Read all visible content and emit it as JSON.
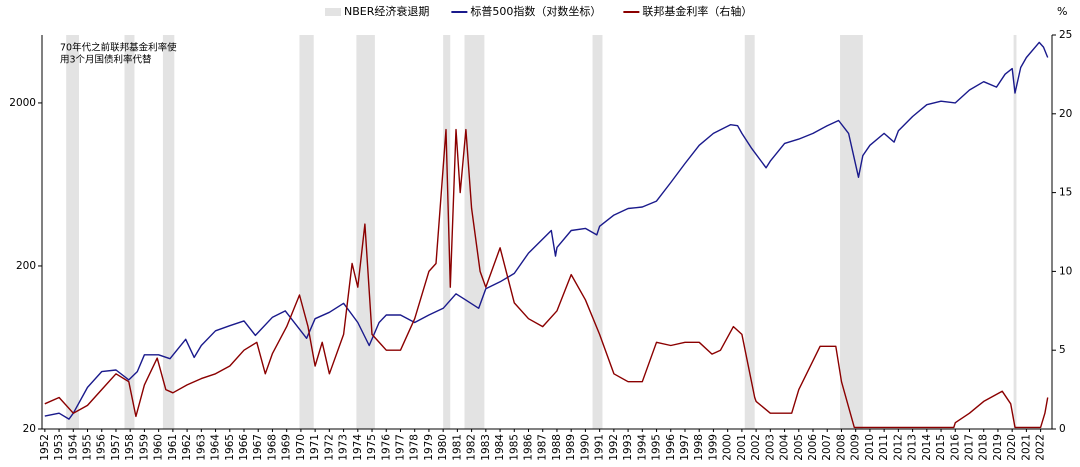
{
  "chart_data": {
    "type": "line",
    "annotation": [
      "70年代之前联邦基金利率使",
      "用3个月国债利率代替"
    ],
    "y2_label": "%",
    "xlim": [
      1951.8,
      2022.8
    ],
    "xticks": [
      1952,
      1953,
      1954,
      1955,
      1956,
      1957,
      1958,
      1959,
      1960,
      1961,
      1962,
      1963,
      1964,
      1965,
      1966,
      1967,
      1968,
      1969,
      1970,
      1971,
      1972,
      1973,
      1974,
      1975,
      1976,
      1977,
      1978,
      1979,
      1980,
      1981,
      1982,
      1983,
      1984,
      1985,
      1986,
      1987,
      1988,
      1989,
      1990,
      1991,
      1992,
      1993,
      1994,
      1995,
      1996,
      1997,
      1998,
      1999,
      2000,
      2001,
      2002,
      2003,
      2004,
      2005,
      2006,
      2007,
      2008,
      2009,
      2010,
      2011,
      2012,
      2013,
      2014,
      2015,
      2016,
      2017,
      2018,
      2019,
      2020,
      2021,
      2022
    ],
    "ylim": [
      20,
      5220
    ],
    "log_y": true,
    "yticks": [
      20,
      200,
      2000
    ],
    "y2lim": [
      0,
      25
    ],
    "y2ticks": [
      0,
      5,
      10,
      15,
      20,
      25
    ],
    "series": [
      {
        "name": "NBER经济衰退期",
        "color": "#e3e3e3",
        "kind": "band",
        "periods": [
          [
            1953.5,
            1954.4
          ],
          [
            1957.6,
            1958.3
          ],
          [
            1960.3,
            1961.1
          ],
          [
            1969.9,
            1970.9
          ],
          [
            1973.9,
            1975.2
          ],
          [
            1980.0,
            1980.5
          ],
          [
            1981.5,
            1982.9
          ],
          [
            1990.5,
            1991.2
          ],
          [
            2001.2,
            2001.9
          ],
          [
            2007.9,
            2009.5
          ],
          [
            2020.1,
            2020.3
          ]
        ]
      },
      {
        "name": "标普500指数（对数坐标）",
        "color": "#1a1a8c",
        "axis": "y",
        "x": [
          1952,
          1953,
          1953.7,
          1954,
          1955,
          1956,
          1957,
          1957.9,
          1958.5,
          1959,
          1960,
          1960.8,
          1961.9,
          1962.5,
          1963,
          1964,
          1965,
          1966,
          1966.8,
          1968,
          1968.9,
          1970.4,
          1971,
          1972,
          1973,
          1974,
          1974.8,
          1975.5,
          1976,
          1977,
          1978,
          1979,
          1980,
          1980.9,
          1981.5,
          1982.5,
          1983,
          1984,
          1985,
          1986,
          1987.6,
          1987.9,
          1988,
          1989,
          1990,
          1990.8,
          1991,
          1992,
          1993,
          1994,
          1995,
          1996,
          1997,
          1998,
          1999,
          2000.2,
          2000.7,
          2001,
          2001.7,
          2002.7,
          2003,
          2004,
          2005,
          2006,
          2007,
          2007.8,
          2008.5,
          2009.2,
          2009.5,
          2010,
          2011,
          2011.7,
          2012,
          2013,
          2014,
          2015,
          2016,
          2017,
          2018,
          2018.9,
          2019.5,
          2020,
          2020.2,
          2020.6,
          2021,
          2021.9,
          2022.2,
          2022.5
        ],
        "values": [
          24,
          25,
          23,
          25,
          36,
          45,
          46,
          40,
          45,
          57,
          57,
          54,
          71,
          55,
          65,
          80,
          86,
          92,
          75,
          97,
          106,
          72,
          95,
          104,
          118,
          90,
          65,
          90,
          100,
          100,
          90,
          100,
          110,
          135,
          125,
          110,
          145,
          160,
          180,
          240,
          330,
          230,
          260,
          330,
          340,
          310,
          350,
          410,
          450,
          460,
          500,
          650,
          850,
          1100,
          1300,
          1470,
          1450,
          1300,
          1050,
          800,
          880,
          1130,
          1200,
          1300,
          1450,
          1560,
          1300,
          700,
          950,
          1100,
          1300,
          1150,
          1350,
          1650,
          1950,
          2050,
          2000,
          2400,
          2700,
          2500,
          3000,
          3250,
          2300,
          3300,
          3800,
          4700,
          4400,
          3800
        ]
      },
      {
        "name": "联邦基金利率（右轴）",
        "color": "#8b0000",
        "axis": "y2",
        "x": [
          1952,
          1953,
          1954,
          1955,
          1956,
          1957,
          1957.9,
          1958.4,
          1959,
          1959.9,
          1960.5,
          1961,
          1962,
          1963,
          1964,
          1965,
          1966,
          1966.9,
          1967.5,
          1968,
          1969,
          1969.9,
          1970.5,
          1971,
          1971.5,
          1972,
          1973,
          1973.6,
          1974,
          1974.5,
          1975,
          1976,
          1977,
          1978,
          1979,
          1979.5,
          1980.2,
          1980.5,
          1980.9,
          1981.2,
          1981.6,
          1982,
          1982.6,
          1983,
          1984,
          1985,
          1986,
          1987,
          1988,
          1989,
          1990,
          1991,
          1992,
          1993,
          1994,
          1995,
          1996,
          1997,
          1998,
          1998.9,
          1999.5,
          2000.4,
          2001,
          2001.9,
          2002,
          2003,
          2004.5,
          2005,
          2006.5,
          2007.6,
          2008,
          2008.9,
          2015.9,
          2016,
          2017,
          2018,
          2019.3,
          2019.9,
          2020.2,
          2022,
          2022.3,
          2022.5
        ],
        "values": [
          1.6,
          2,
          1,
          1.5,
          2.5,
          3.5,
          3,
          0.8,
          2.8,
          4.5,
          2.5,
          2.3,
          2.8,
          3.2,
          3.5,
          4,
          5,
          5.5,
          3.5,
          4.8,
          6.5,
          8.5,
          6.5,
          4,
          5.5,
          3.5,
          6,
          10.5,
          9,
          13,
          6,
          5,
          5,
          7,
          10,
          10.5,
          19,
          9,
          19,
          15,
          19,
          14,
          10,
          9,
          11.5,
          8,
          7,
          6.5,
          7.5,
          9.8,
          8.2,
          6,
          3.5,
          3,
          3,
          5.5,
          5.3,
          5.5,
          5.5,
          4.75,
          5,
          6.5,
          6,
          2,
          1.75,
          1,
          1,
          2.5,
          5.25,
          5.25,
          3,
          0.1,
          0.1,
          0.4,
          1,
          1.75,
          2.4,
          1.6,
          0.1,
          0.1,
          1,
          2
        ]
      }
    ]
  }
}
